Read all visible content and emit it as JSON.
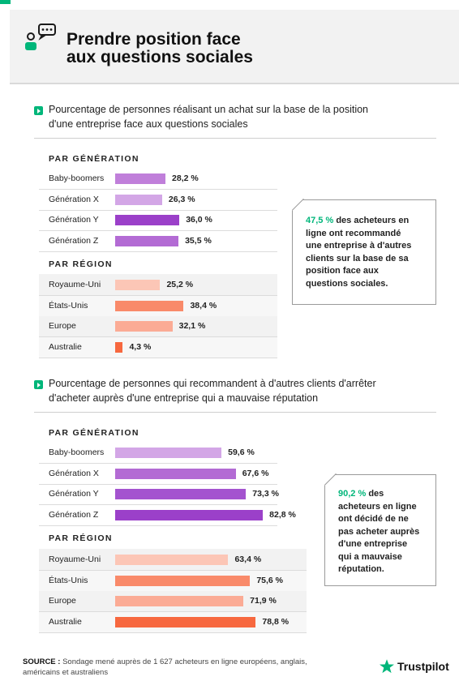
{
  "header": {
    "title_line1": "Prendre position face",
    "title_line2": "aux questions sociales",
    "accent_color": "#00b67a"
  },
  "section1": {
    "question_line1": "Pourcentage de personnes réalisant un achat sur la base de la position",
    "question_line2": "d'une entreprise face aux questions sociales",
    "generation_title": "PAR GÉNÉRATION",
    "region_title": "PAR RÉGION",
    "callout_pct": "47,5 %",
    "callout_lines": [
      "des acheteurs en",
      "ligne ont recommandé",
      "une entreprise à d'autres",
      "clients sur la base de sa",
      "position face aux",
      "questions sociales."
    ]
  },
  "section2": {
    "question_line1": "Pourcentage de personnes qui recommandent à d'autres clients d'arrêter",
    "question_line2": "d'acheter auprès d'une entreprise qui a mauvaise réputation",
    "generation_title": "PAR GÉNÉRATION",
    "region_title": "PAR RÉGION",
    "callout_pct": "90,2 %",
    "callout_lines_first": "des",
    "callout_lines": [
      "acheteurs en ligne",
      "ont décidé de ne",
      "pas acheter auprès",
      "d'une entreprise",
      "qui a mauvaise",
      "réputation."
    ]
  },
  "chart_data": [
    {
      "type": "bar",
      "title": "Pourcentage de personnes réalisant un achat sur la base de la position d'une entreprise face aux questions sociales",
      "group": "PAR GÉNÉRATION",
      "categories": [
        "Baby-boomers",
        "Génération X",
        "Génération Y",
        "Génération Z"
      ],
      "values": [
        28.2,
        26.3,
        36.0,
        35.5
      ],
      "labels": [
        "28,2 %",
        "26,3 %",
        "36,0 %",
        "35,5 %"
      ],
      "colors": [
        "#c07fda",
        "#d3a6e6",
        "#9b40c9",
        "#b36bd4"
      ],
      "xlim": [
        0,
        100
      ]
    },
    {
      "type": "bar",
      "title": "Pourcentage de personnes réalisant un achat sur la base de la position d'une entreprise face aux questions sociales",
      "group": "PAR RÉGION",
      "categories": [
        "Royaume-Uni",
        "États-Unis",
        "Europe",
        "Australie"
      ],
      "values": [
        25.2,
        38.4,
        32.1,
        4.3
      ],
      "labels": [
        "25,2 %",
        "38,4 %",
        "32,1 %",
        "4,3 %"
      ],
      "colors": [
        "#fcc6b6",
        "#f98a6a",
        "#fbab95",
        "#f7683f"
      ],
      "xlim": [
        0,
        100
      ]
    },
    {
      "type": "bar",
      "title": "Pourcentage de personnes qui recommandent à d'autres clients d'arrêter d'acheter auprès d'une entreprise qui a mauvaise réputation",
      "group": "PAR GÉNÉRATION",
      "categories": [
        "Baby-boomers",
        "Génération X",
        "Génération Y",
        "Génération Z"
      ],
      "values": [
        59.6,
        67.6,
        73.3,
        82.8
      ],
      "labels": [
        "59,6 %",
        "67,6 %",
        "73,3 %",
        "82,8 %"
      ],
      "colors": [
        "#d3a6e6",
        "#b36bd4",
        "#a453cf",
        "#9b40c9"
      ],
      "xlim": [
        0,
        100
      ]
    },
    {
      "type": "bar",
      "title": "Pourcentage de personnes qui recommandent à d'autres clients d'arrêter d'acheter auprès d'une entreprise qui a mauvaise réputation",
      "group": "PAR RÉGION",
      "categories": [
        "Royaume-Uni",
        "États-Unis",
        "Europe",
        "Australie"
      ],
      "values": [
        63.4,
        75.6,
        71.9,
        78.8
      ],
      "labels": [
        "63,4 %",
        "75,6 %",
        "71,9 %",
        "78,8 %"
      ],
      "colors": [
        "#fcc6b6",
        "#f98a6a",
        "#fbab95",
        "#f7683f"
      ],
      "xlim": [
        0,
        100
      ]
    }
  ],
  "footer": {
    "source_label": "SOURCE :",
    "source_text": "Sondage mené auprès de 1 627 acheteurs en ligne européens, anglais, américains et australiens",
    "brand": "Trustpilot"
  }
}
